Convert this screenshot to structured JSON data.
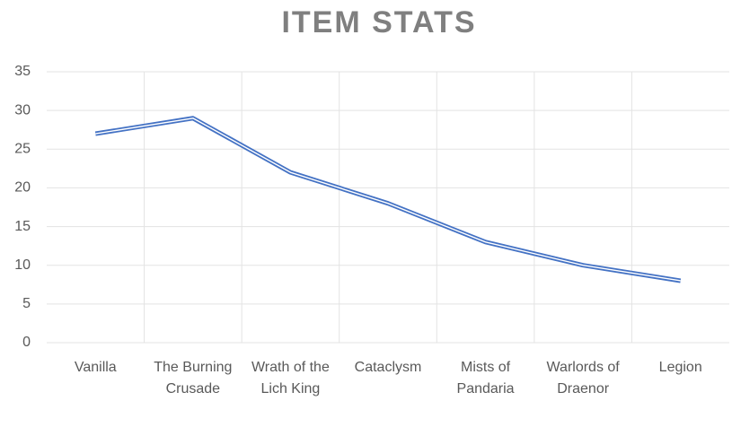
{
  "chart_data": {
    "type": "line",
    "title": "ITEM STATS",
    "categories": [
      "Vanilla",
      "The Burning Crusade",
      "Wrath of the Lich King",
      "Cataclysm",
      "Mists of Pandaria",
      "Warlords of Draenor",
      "Legion"
    ],
    "values": [
      27,
      29,
      22,
      18,
      13,
      10,
      8
    ],
    "color": "#4472c4",
    "ylim": [
      0,
      35
    ],
    "yticks": [
      0,
      5,
      10,
      15,
      20,
      25,
      30,
      35
    ],
    "grid": true
  }
}
